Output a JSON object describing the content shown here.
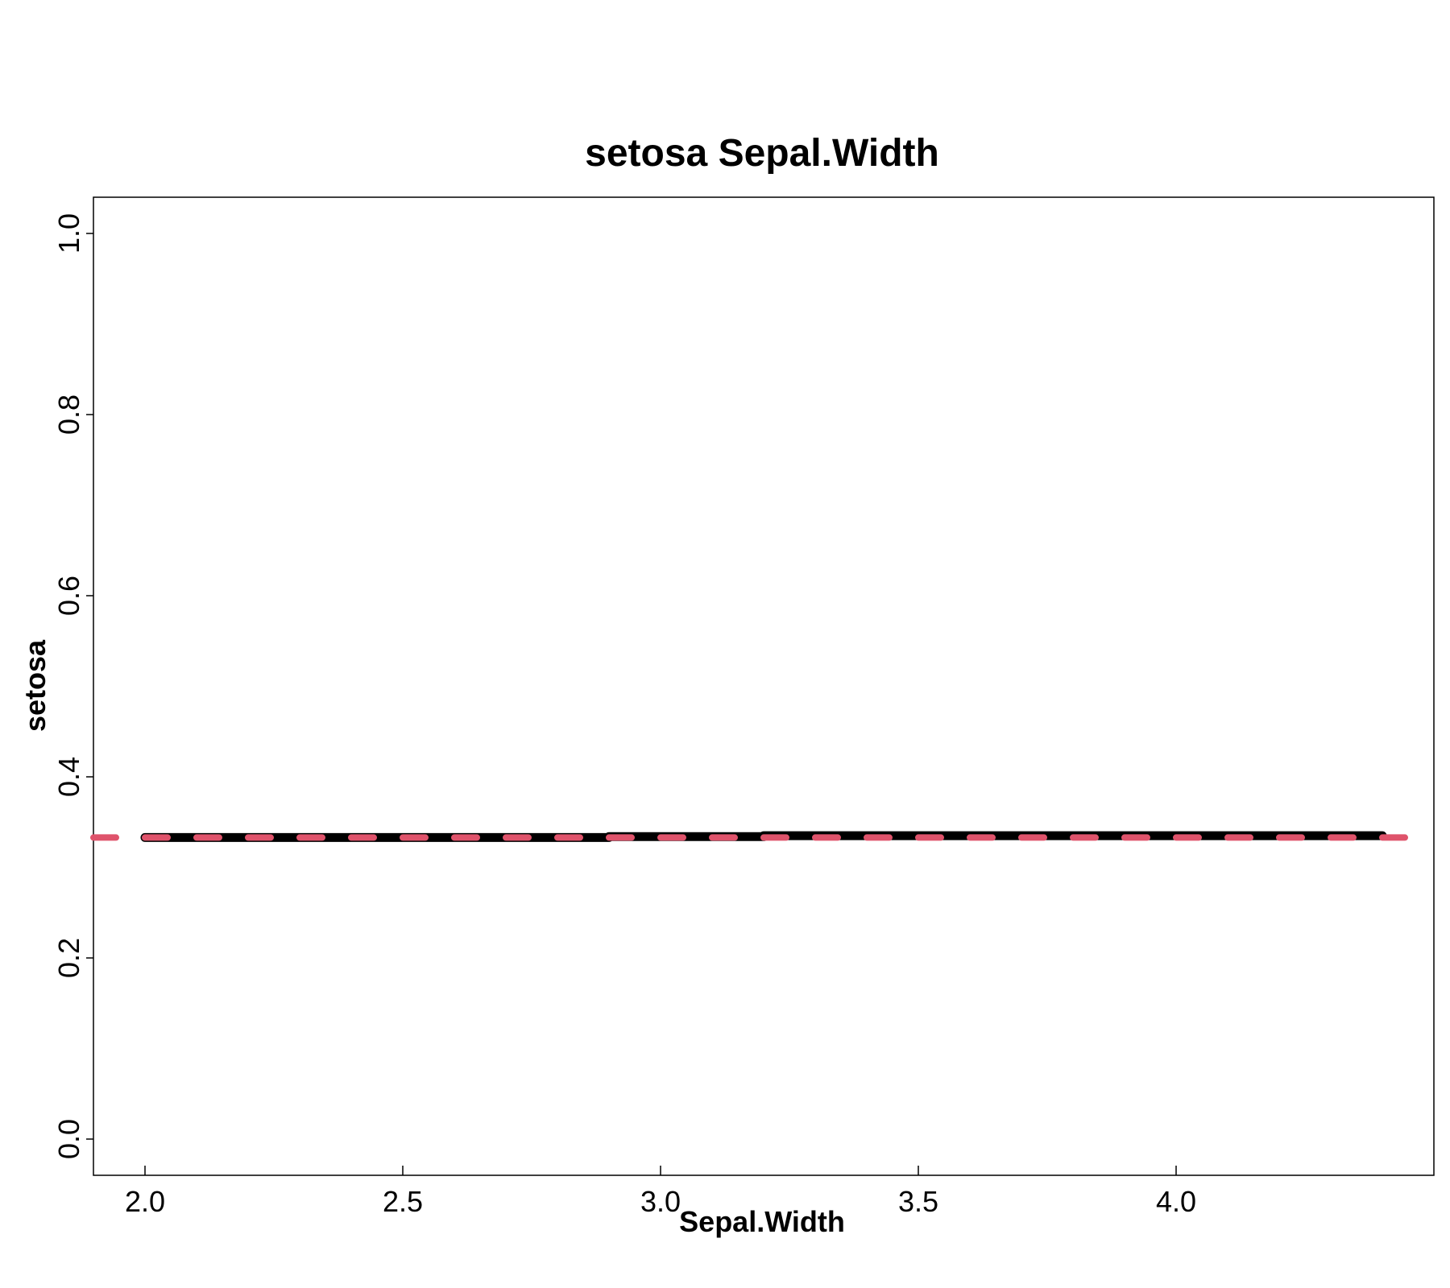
{
  "chart_data": {
    "type": "line",
    "title": "setosa  Sepal.Width",
    "xlabel": "Sepal.Width",
    "ylabel": "setosa",
    "xlim": [
      1.9,
      4.5
    ],
    "ylim": [
      -0.04,
      1.04
    ],
    "x_ticks": [
      "2.0",
      "2.5",
      "3.0",
      "3.5",
      "4.0"
    ],
    "y_ticks": [
      "0.0",
      "0.2",
      "0.4",
      "0.6",
      "0.8",
      "1.0"
    ],
    "grid": false,
    "series": [
      {
        "style": "solid",
        "color": "#000000",
        "x": [
          2.0,
          2.9,
          2.9,
          3.2,
          3.2,
          4.4
        ],
        "y": [
          0.333,
          0.333,
          0.334,
          0.334,
          0.335,
          0.335
        ]
      },
      {
        "style": "dashed",
        "color": "#DF536B",
        "x": [
          1.9,
          4.5
        ],
        "y": [
          0.333,
          0.333
        ]
      }
    ]
  }
}
